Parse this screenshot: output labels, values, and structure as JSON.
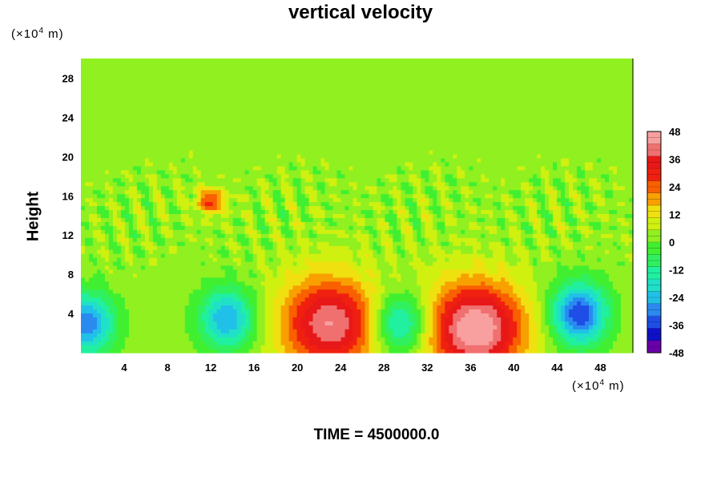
{
  "chart_data": {
    "type": "heatmap",
    "title": "vertical velocity",
    "ylabel": "Height",
    "x_unit": {
      "prefix": "(×10",
      "exp": "4",
      "suffix": " m)"
    },
    "y_unit": {
      "prefix": "(×10",
      "exp": "4",
      "suffix": " m)"
    },
    "xlim": [
      0,
      51
    ],
    "ylim": [
      0,
      30
    ],
    "x_ticks": [
      4,
      8,
      12,
      16,
      20,
      24,
      28,
      32,
      36,
      40,
      44,
      48
    ],
    "y_ticks": [
      4,
      8,
      12,
      16,
      20,
      24,
      28
    ],
    "colorbar": {
      "min": -48,
      "max": 48,
      "ticks": [
        48,
        36,
        24,
        12,
        0,
        -12,
        -24,
        -36,
        -48
      ],
      "colors": [
        "#6a00a8",
        "#1010c8",
        "#1e4ee6",
        "#2a8af0",
        "#20c0e8",
        "#20e0c8",
        "#20f0a0",
        "#30f060",
        "#40f030",
        "#90f020",
        "#d0f010",
        "#f0e010",
        "#f8a000",
        "#f86000",
        "#f02010",
        "#e81818",
        "#f07070",
        "#f8a0a0"
      ]
    },
    "features": [
      {
        "kind": "updraft",
        "x": 23,
        "z": 3,
        "w": 40
      },
      {
        "kind": "updraft",
        "x": 36.5,
        "z": 2.5,
        "w": 46
      },
      {
        "kind": "downdraft",
        "x": 0.5,
        "z": 3,
        "w": -34
      },
      {
        "kind": "downdraft",
        "x": 13.5,
        "z": 3.5,
        "w": -30
      },
      {
        "kind": "downdraft",
        "x": 29.5,
        "z": 3,
        "w": -28
      },
      {
        "kind": "downdraft",
        "x": 46,
        "z": 4,
        "w": -40
      },
      {
        "kind": "updraft",
        "x": 12,
        "z": 15.5,
        "w": 26
      }
    ]
  },
  "footer": {
    "time": "TIME = 4500000.0"
  }
}
